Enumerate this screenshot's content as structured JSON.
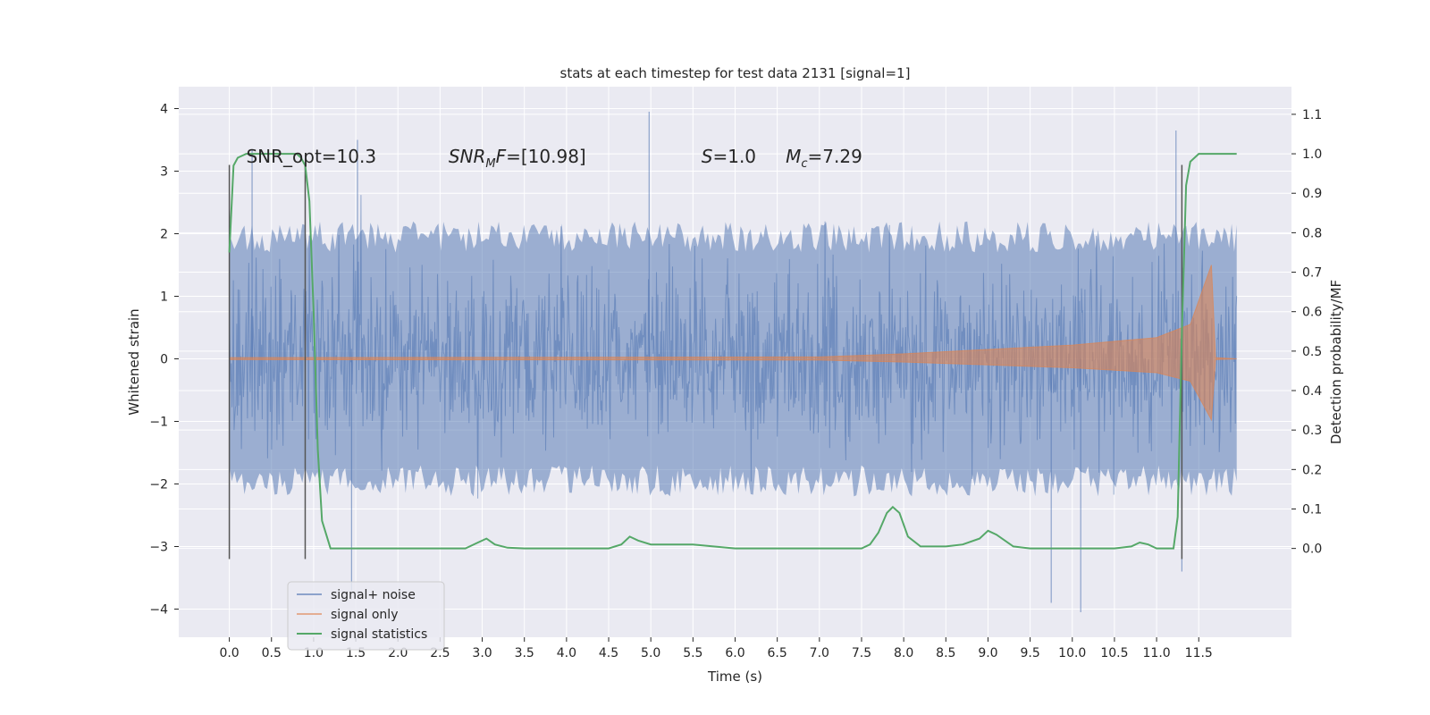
{
  "chart_data": {
    "type": "line",
    "title": "stats at each timestep for test data 2131 [signal=1]",
    "xlabel": "Time (s)",
    "ylabel": "Whitened strain",
    "y2label": "Detection probability/MF",
    "xlim": [
      -0.6,
      12.6
    ],
    "ylim": [
      -4.45,
      4.35
    ],
    "y2lim": [
      -0.225,
      1.17
    ],
    "x_ticks": [
      "0.0",
      "0.5",
      "1.0",
      "1.5",
      "2.0",
      "2.5",
      "3.0",
      "3.5",
      "4.0",
      "4.5",
      "5.0",
      "5.5",
      "6.0",
      "6.5",
      "7.0",
      "7.5",
      "8.0",
      "8.5",
      "9.0",
      "9.5",
      "10.0",
      "10.5",
      "11.0",
      "11.5"
    ],
    "y_ticks": [
      "4",
      "3",
      "2",
      "1",
      "0",
      "−1",
      "−2",
      "−3",
      "−4"
    ],
    "y2_ticks": [
      "1.1",
      "1.0",
      "0.9",
      "0.8",
      "0.7",
      "0.6",
      "0.5",
      "0.4",
      "0.3",
      "0.2",
      "0.1",
      "0.0"
    ],
    "grid": true,
    "legend_position": "lower-left",
    "series": [
      {
        "name": "signal+ noise",
        "color": "#4c72b0",
        "description_envelope": {
          "x_range": [
            0.0,
            11.95
          ],
          "typical_upper": 2.0,
          "typical_lower": -2.0,
          "peak_points": [
            {
              "x": 0.27,
              "y": 3.35
            },
            {
              "x": 1.52,
              "y": 3.5
            },
            {
              "x": 4.98,
              "y": 3.95
            },
            {
              "x": 11.23,
              "y": 3.65
            },
            {
              "x": 1.45,
              "y": -3.7
            },
            {
              "x": 9.75,
              "y": -3.9
            },
            {
              "x": 10.1,
              "y": -4.05
            },
            {
              "x": 11.3,
              "y": -3.4
            }
          ]
        }
      },
      {
        "name": "signal only",
        "color": "#dd8452",
        "chirp_points": [
          {
            "x": 0.0,
            "amp": 0.02
          },
          {
            "x": 7.0,
            "amp": 0.03
          },
          {
            "x": 8.0,
            "amp": 0.08
          },
          {
            "x": 9.0,
            "amp": 0.15
          },
          {
            "x": 10.0,
            "amp": 0.22
          },
          {
            "x": 11.0,
            "amp": 0.34
          },
          {
            "x": 11.4,
            "amp": 0.55
          },
          {
            "x": 11.65,
            "amp": 1.5
          },
          {
            "x": 11.7,
            "amp": 0.02
          },
          {
            "x": 11.95,
            "amp": 0.0
          }
        ]
      },
      {
        "name": "signal statistics",
        "color": "#55a868",
        "axis": "right",
        "x": [
          0.0,
          0.05,
          0.1,
          0.2,
          0.3,
          0.5,
          0.7,
          0.8,
          0.85,
          0.9,
          0.95,
          1.0,
          1.05,
          1.1,
          1.2,
          1.5,
          2.0,
          2.5,
          2.8,
          2.95,
          3.05,
          3.15,
          3.3,
          3.5,
          4.0,
          4.5,
          4.65,
          4.75,
          4.85,
          5.0,
          5.5,
          6.0,
          6.5,
          7.0,
          7.5,
          7.6,
          7.7,
          7.8,
          7.87,
          7.95,
          8.05,
          8.2,
          8.5,
          8.7,
          8.9,
          9.0,
          9.1,
          9.3,
          9.5,
          10.0,
          10.5,
          10.7,
          10.8,
          10.9,
          11.0,
          11.2,
          11.25,
          11.3,
          11.35,
          11.4,
          11.5,
          11.6,
          11.8,
          11.95
        ],
        "y": [
          0.75,
          0.97,
          0.99,
          1.0,
          1.0,
          1.0,
          1.0,
          1.0,
          0.99,
          0.97,
          0.88,
          0.6,
          0.25,
          0.07,
          0.0,
          0.0,
          0.0,
          0.0,
          0.0,
          0.015,
          0.025,
          0.01,
          0.002,
          0.0,
          0.0,
          0.0,
          0.01,
          0.03,
          0.02,
          0.01,
          0.01,
          0.0,
          0.0,
          0.0,
          0.0,
          0.01,
          0.04,
          0.09,
          0.105,
          0.09,
          0.03,
          0.005,
          0.005,
          0.01,
          0.025,
          0.045,
          0.035,
          0.005,
          0.0,
          0.0,
          0.0,
          0.005,
          0.015,
          0.01,
          0.0,
          0.0,
          0.08,
          0.55,
          0.92,
          0.98,
          1.0,
          1.0,
          1.0,
          1.0
        ]
      }
    ],
    "vertical_markers": [
      {
        "x": 0.0,
        "y_from": -3.2,
        "y_to": 3.1
      },
      {
        "x": 0.9,
        "y_from": -3.2,
        "y_to": 3.1
      },
      {
        "x": 11.3,
        "y_from": -3.2,
        "y_to": 3.1
      }
    ],
    "annotations": [
      {
        "text": "SNR_opt=10.3",
        "x": 0.2,
        "y": 3.05
      },
      {
        "text": "SNR_MF=[10.98]",
        "x": 2.6,
        "y": 3.05,
        "rich": "snr_mf"
      },
      {
        "text": "S=1.0",
        "x": 5.6,
        "y": 3.05,
        "rich": "s"
      },
      {
        "text": "M_c=7.29",
        "x": 6.6,
        "y": 3.05,
        "rich": "mc"
      }
    ]
  }
}
